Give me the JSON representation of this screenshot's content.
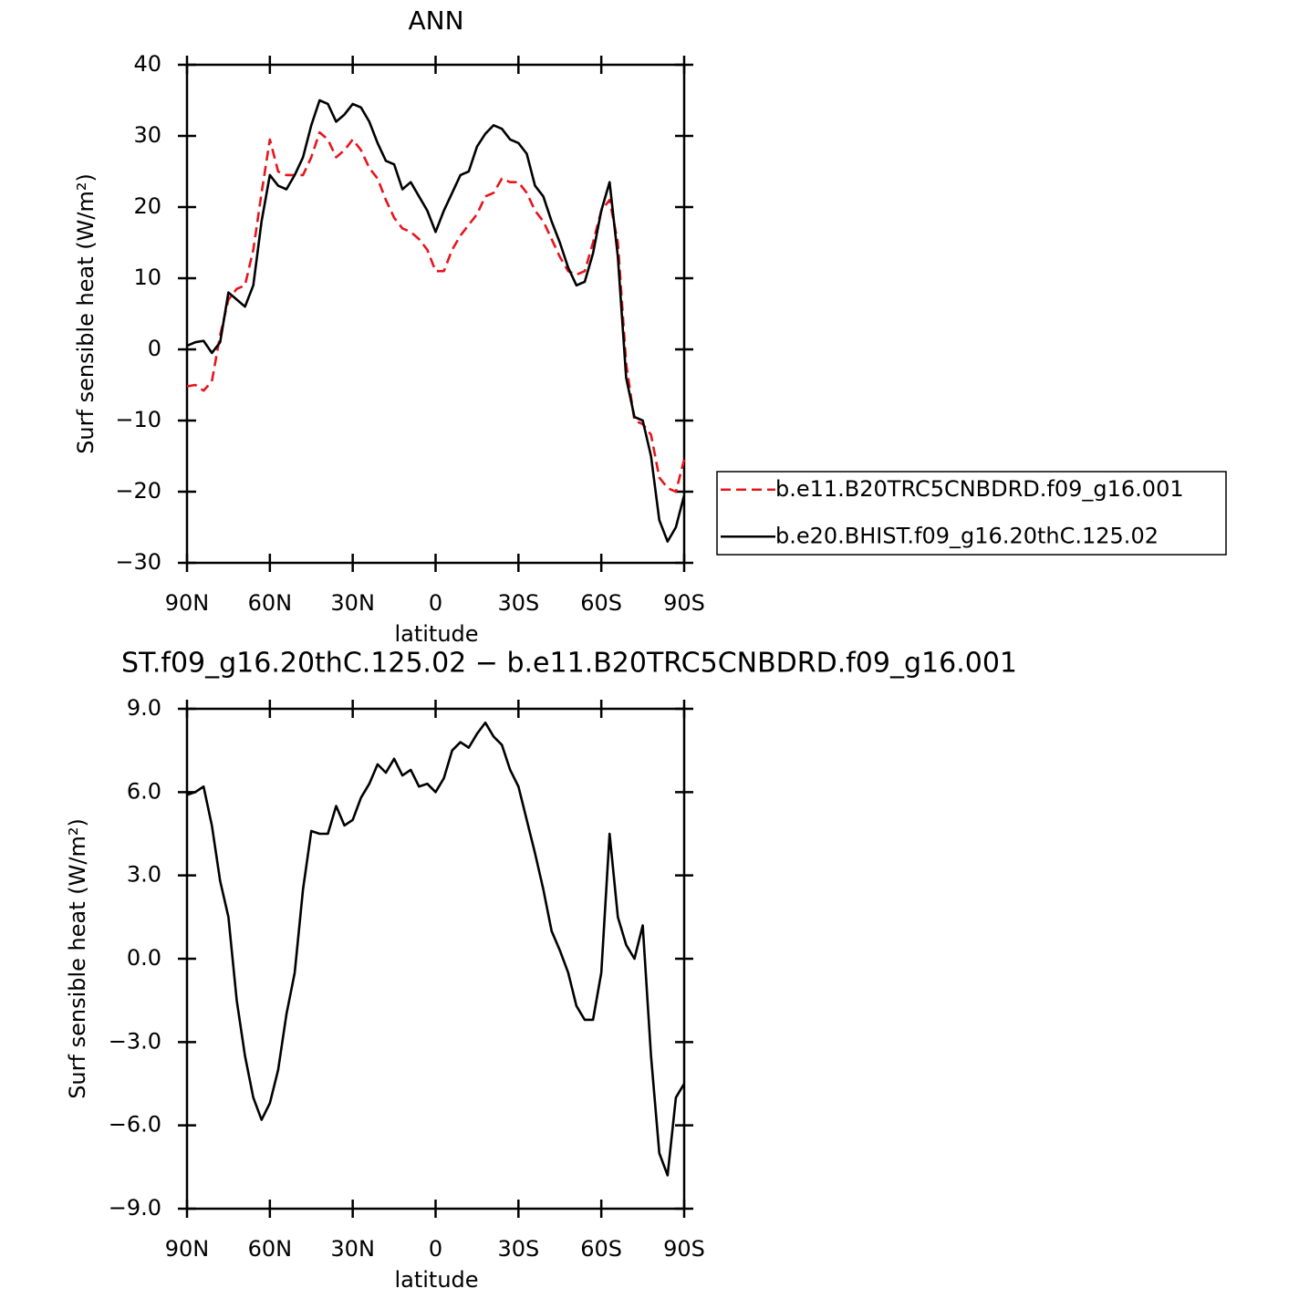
{
  "chart_data": [
    {
      "type": "line",
      "title": "ANN",
      "xlabel": "latitude",
      "ylabel": "Surf sensible heat (W/m²)",
      "x": [
        90,
        87,
        84,
        81,
        78,
        75,
        72,
        69,
        66,
        63,
        60,
        57,
        54,
        51,
        48,
        45,
        42,
        39,
        36,
        33,
        30,
        27,
        24,
        21,
        18,
        15,
        12,
        9,
        6,
        3,
        0,
        -3,
        -6,
        -9,
        -12,
        -15,
        -18,
        -21,
        -24,
        -27,
        -30,
        -33,
        -36,
        -39,
        -42,
        -45,
        -48,
        -51,
        -54,
        -57,
        -60,
        -63,
        -66,
        -69,
        -72,
        -75,
        -78,
        -81,
        -84,
        -87,
        -90
      ],
      "xlim": [
        90,
        -90
      ],
      "xticks": [
        {
          "value": 90,
          "label": "90N"
        },
        {
          "value": 60,
          "label": "60N"
        },
        {
          "value": 30,
          "label": "30N"
        },
        0,
        {
          "value": -30,
          "label": "30S"
        },
        {
          "value": -60,
          "label": "60S"
        },
        {
          "value": -90,
          "label": "90S"
        }
      ],
      "ylim": [
        -30,
        40
      ],
      "yticks": [
        {
          "value": -30,
          "label": "−30"
        },
        {
          "value": -20,
          "label": "−20"
        },
        {
          "value": -10,
          "label": "−10"
        },
        0,
        10,
        20,
        30,
        40
      ],
      "legend": "right",
      "series": [
        {
          "name": "b.e11.B20TRC5CNBDRD.f09_g16.001",
          "color": "#e8141c",
          "dashed": true,
          "values": [
            -5.2,
            -5,
            -5.8,
            -4.5,
            2,
            7,
            8.5,
            9,
            14,
            22,
            29.5,
            25,
            24.5,
            24.5,
            24.5,
            27,
            30.5,
            29.5,
            27,
            28,
            29.5,
            28,
            25.5,
            24,
            21,
            18.5,
            17,
            16.5,
            15.5,
            14,
            11,
            11,
            14,
            16,
            17.5,
            19,
            21.5,
            22,
            24,
            23.5,
            23.5,
            22,
            19.5,
            18,
            15.5,
            13,
            11,
            10.5,
            11,
            15,
            19.5,
            21,
            15,
            -2,
            -10,
            -10.5,
            -12,
            -18,
            -19.5,
            -20,
            -15.5
          ]
        },
        {
          "name": "b.e20.BHIST.f09_g16.20thC.125.02",
          "color": "#000000",
          "dashed": false,
          "values": [
            0.5,
            1,
            1.2,
            -0.5,
            1,
            8,
            7,
            6,
            9,
            18,
            24.5,
            23,
            22.5,
            24.5,
            27,
            31.5,
            35,
            34.5,
            32,
            33,
            34.5,
            34,
            32,
            29,
            26.5,
            26,
            22.5,
            23.5,
            21.5,
            19.5,
            16.5,
            19.5,
            22,
            24.5,
            25,
            28.5,
            30.3,
            31.5,
            31,
            29.5,
            29,
            27.5,
            23,
            21.5,
            18,
            15,
            11.5,
            9,
            9.5,
            13.5,
            19.5,
            23.5,
            13,
            -4,
            -9.5,
            -10,
            -15,
            -24,
            -27,
            -25,
            -20.5
          ]
        }
      ]
    },
    {
      "type": "line",
      "title": "ST.f09_g16.20thC.125.02 − b.e11.B20TRC5CNBDRD.f09_g16.001",
      "xlabel": "latitude",
      "ylabel": "Surf sensible heat (W/m²)",
      "x": [
        90,
        87,
        84,
        81,
        78,
        75,
        72,
        69,
        66,
        63,
        60,
        57,
        54,
        51,
        48,
        45,
        42,
        39,
        36,
        33,
        30,
        27,
        24,
        21,
        18,
        15,
        12,
        9,
        6,
        3,
        0,
        -3,
        -6,
        -9,
        -12,
        -15,
        -18,
        -21,
        -24,
        -27,
        -30,
        -33,
        -36,
        -39,
        -42,
        -45,
        -48,
        -51,
        -54,
        -57,
        -60,
        -63,
        -66,
        -69,
        -72,
        -75,
        -78,
        -81,
        -84,
        -87,
        -90
      ],
      "xlim": [
        90,
        -90
      ],
      "xticks": [
        {
          "value": 90,
          "label": "90N"
        },
        {
          "value": 60,
          "label": "60N"
        },
        {
          "value": 30,
          "label": "30N"
        },
        0,
        {
          "value": -30,
          "label": "30S"
        },
        {
          "value": -60,
          "label": "60S"
        },
        {
          "value": -90,
          "label": "90S"
        }
      ],
      "ylim": [
        -9,
        9
      ],
      "yticks": [
        {
          "value": -9,
          "label": "−9.0"
        },
        {
          "value": -6,
          "label": "−6.0"
        },
        {
          "value": -3,
          "label": "−3.0"
        },
        {
          "value": 0,
          "label": "0.0"
        },
        {
          "value": 3,
          "label": "3.0"
        },
        {
          "value": 6,
          "label": "6.0"
        },
        {
          "value": 9,
          "label": "9.0"
        }
      ],
      "series": [
        {
          "color": "#000000",
          "dashed": false,
          "values": [
            5.9,
            6.0,
            6.2,
            4.8,
            2.8,
            1.5,
            -1.5,
            -3.5,
            -5,
            -5.8,
            -5.2,
            -4,
            -2,
            -0.5,
            2.5,
            4.6,
            4.5,
            4.5,
            5.5,
            4.8,
            5.0,
            5.8,
            6.3,
            7.0,
            6.7,
            7.2,
            6.6,
            6.8,
            6.2,
            6.3,
            6.0,
            6.5,
            7.5,
            7.8,
            7.6,
            8.1,
            8.5,
            8.0,
            7.7,
            6.8,
            6.2,
            5.0,
            3.8,
            2.5,
            1.0,
            0.3,
            -0.5,
            -1.7,
            -2.2,
            -2.2,
            -0.5,
            4.5,
            1.5,
            0.5,
            0,
            1.2,
            -3.5,
            -7,
            -7.8,
            -5.0,
            -4.5
          ]
        }
      ]
    }
  ]
}
